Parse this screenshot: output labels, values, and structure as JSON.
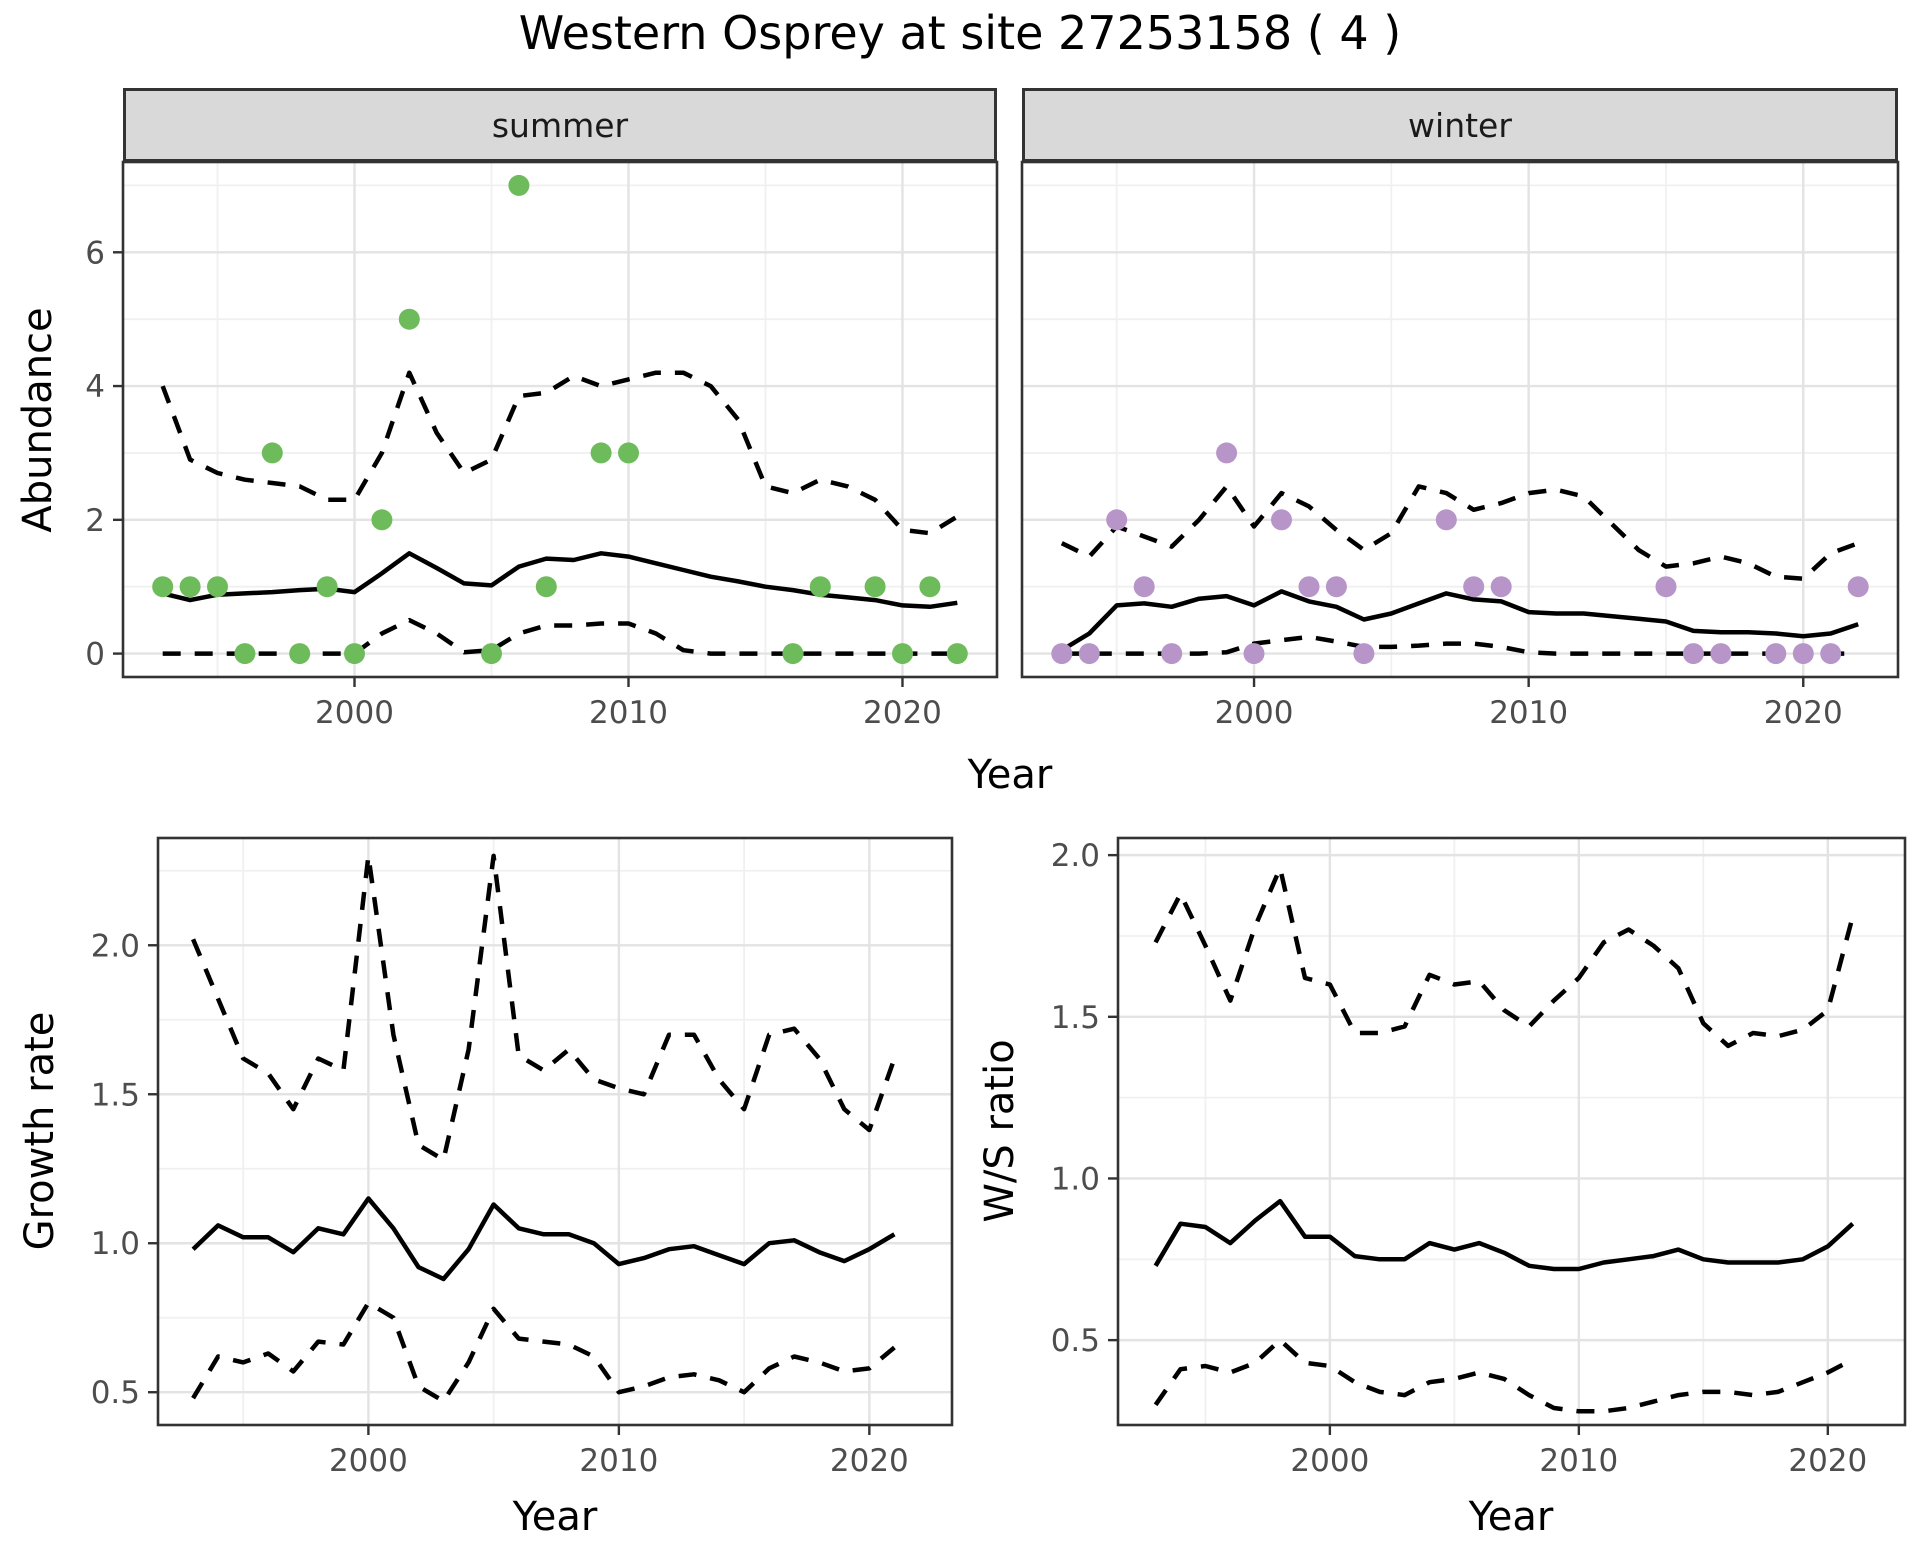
{
  "title": "Western Osprey at site 27253158 ( 4 )",
  "colors": {
    "summer_point": "#6ebb5c",
    "winter_point": "#b795c8",
    "line": "#000000",
    "strip_bg": "#d9d9d9",
    "grid_major": "#e3e3e3",
    "grid_minor": "#f0f0f0",
    "panel_border": "#333333",
    "tick_text": "#4d4d4d"
  },
  "chart_data": [
    {
      "id": "abundance",
      "type": "line+scatter",
      "ylabel": "Abundance",
      "xlabel": "Year",
      "x_major": [
        2000,
        2010,
        2020
      ],
      "x_minor": [
        1995,
        2005,
        2015
      ],
      "x_tick_labels": [
        "2000",
        "2010",
        "2020"
      ],
      "y_major": [
        0,
        2,
        4,
        6
      ],
      "y_minor": [
        1,
        3,
        5,
        7
      ],
      "y_tick_labels": [
        "0",
        "2",
        "4",
        "6"
      ],
      "xlim": [
        1991.55,
        2023.45
      ],
      "ylim": [
        -0.35,
        7.35
      ],
      "facets": [
        {
          "label": "summer",
          "point_color": "#6ebb5c",
          "points": {
            "years": [
              1993,
              1994,
              1995,
              1996,
              1997,
              1998,
              1999,
              2000,
              2001,
              2002,
              2005,
              2006,
              2007,
              2009,
              2010,
              2016,
              2017,
              2019,
              2020,
              2021,
              2022
            ],
            "values": [
              1,
              1,
              1,
              0,
              3,
              0,
              1,
              0,
              2,
              5,
              0,
              7,
              1,
              3,
              3,
              0,
              1,
              1,
              0,
              1,
              0
            ]
          },
          "year_start": 1993,
          "median": [
            0.9,
            0.8,
            0.88,
            0.9,
            0.92,
            0.95,
            0.97,
            0.92,
            1.2,
            1.5,
            1.28,
            1.05,
            1.02,
            1.3,
            1.42,
            1.4,
            1.5,
            1.45,
            1.35,
            1.25,
            1.15,
            1.08,
            1.0,
            0.95,
            0.88,
            0.84,
            0.8,
            0.72,
            0.7,
            0.76
          ],
          "upper": [
            4.0,
            2.9,
            2.7,
            2.6,
            2.55,
            2.5,
            2.3,
            2.3,
            3.0,
            4.2,
            3.3,
            2.7,
            2.9,
            3.85,
            3.9,
            4.15,
            4.0,
            4.1,
            4.2,
            4.2,
            4.0,
            3.5,
            2.5,
            2.4,
            2.6,
            2.5,
            2.3,
            1.85,
            1.8,
            2.05
          ],
          "lower": [
            0,
            0,
            0,
            0,
            0,
            0,
            0,
            0,
            0.3,
            0.5,
            0.3,
            0.02,
            0.05,
            0.3,
            0.42,
            0.42,
            0.45,
            0.45,
            0.3,
            0.05,
            0,
            0,
            0,
            0,
            0,
            0,
            0,
            0,
            0,
            0
          ]
        },
        {
          "label": "winter",
          "point_color": "#b795c8",
          "points": {
            "years": [
              1993,
              1994,
              1995,
              1996,
              1997,
              1999,
              2000,
              2001,
              2002,
              2003,
              2004,
              2007,
              2008,
              2009,
              2015,
              2016,
              2017,
              2019,
              2020,
              2021,
              2022
            ],
            "values": [
              0,
              0,
              2,
              1,
              0,
              3,
              0,
              2,
              1,
              1,
              0,
              2,
              1,
              1,
              1,
              0,
              0,
              0,
              0,
              0,
              1
            ]
          },
          "year_start": 1993,
          "median": [
            0.05,
            0.3,
            0.72,
            0.75,
            0.7,
            0.82,
            0.86,
            0.72,
            0.93,
            0.78,
            0.7,
            0.51,
            0.6,
            0.75,
            0.9,
            0.81,
            0.78,
            0.62,
            0.6,
            0.6,
            0.56,
            0.52,
            0.48,
            0.34,
            0.32,
            0.32,
            0.3,
            0.26,
            0.3,
            0.44
          ],
          "upper": [
            1.65,
            1.45,
            1.9,
            1.75,
            1.6,
            2.0,
            2.5,
            1.9,
            2.4,
            2.2,
            1.85,
            1.55,
            1.8,
            2.5,
            2.4,
            2.15,
            2.25,
            2.4,
            2.45,
            2.35,
            1.95,
            1.55,
            1.3,
            1.35,
            1.45,
            1.35,
            1.15,
            1.12,
            1.5,
            1.65
          ],
          "lower": [
            0,
            0,
            0,
            0,
            0,
            0,
            0.02,
            0.15,
            0.2,
            0.25,
            0.18,
            0.1,
            0.1,
            0.12,
            0.15,
            0.15,
            0.1,
            0.02,
            0,
            0,
            0,
            0,
            0,
            0,
            0,
            0,
            0,
            0,
            0,
            0
          ]
        }
      ]
    },
    {
      "id": "growth",
      "type": "line",
      "ylabel": "Growth rate",
      "xlabel": "Year",
      "x_major": [
        2000,
        2010,
        2020
      ],
      "x_minor": [
        1995,
        2005,
        2015
      ],
      "x_tick_labels": [
        "2000",
        "2010",
        "2020"
      ],
      "y_major": [
        0.5,
        1.0,
        1.5,
        2.0
      ],
      "y_minor": [
        0.75,
        1.25,
        1.75,
        2.25
      ],
      "y_tick_labels": [
        "0.5",
        "1.0",
        "1.5",
        "2.0"
      ],
      "xlim": [
        1991.6,
        2023.3
      ],
      "ylim": [
        0.39,
        2.36
      ],
      "year_start": 1993,
      "median": [
        0.98,
        1.06,
        1.02,
        1.02,
        0.97,
        1.05,
        1.03,
        1.15,
        1.05,
        0.92,
        0.88,
        0.98,
        1.13,
        1.05,
        1.03,
        1.03,
        1.0,
        0.93,
        0.95,
        0.98,
        0.99,
        0.96,
        0.93,
        1.0,
        1.01,
        0.97,
        0.94,
        0.98,
        1.03
      ],
      "upper": [
        2.02,
        1.82,
        1.62,
        1.57,
        1.45,
        1.62,
        1.58,
        2.3,
        1.7,
        1.33,
        1.28,
        1.65,
        2.3,
        1.63,
        1.58,
        1.65,
        1.55,
        1.52,
        1.5,
        1.7,
        1.7,
        1.55,
        1.45,
        1.7,
        1.72,
        1.62,
        1.45,
        1.38,
        1.62
      ],
      "lower": [
        0.48,
        0.62,
        0.6,
        0.63,
        0.57,
        0.67,
        0.66,
        0.8,
        0.75,
        0.52,
        0.47,
        0.6,
        0.78,
        0.68,
        0.67,
        0.66,
        0.62,
        0.5,
        0.52,
        0.55,
        0.56,
        0.54,
        0.5,
        0.58,
        0.62,
        0.6,
        0.57,
        0.58,
        0.65
      ]
    },
    {
      "id": "ws",
      "type": "line",
      "ylabel": "W/S ratio",
      "xlabel": "Year",
      "x_major": [
        2000,
        2010,
        2020
      ],
      "x_minor": [
        1995,
        2005,
        2015
      ],
      "x_tick_labels": [
        "2000",
        "2010",
        "2020"
      ],
      "y_major": [
        0.5,
        1.0,
        1.5,
        2.0
      ],
      "y_minor": [
        0.75,
        1.25,
        1.75
      ],
      "y_tick_labels": [
        "0.5",
        "1.0",
        "1.5",
        "2.0"
      ],
      "xlim": [
        1991.49,
        2023.1
      ],
      "ylim": [
        0.2375,
        2.053
      ],
      "year_start": 1993,
      "median": [
        0.73,
        0.86,
        0.85,
        0.8,
        0.87,
        0.93,
        0.82,
        0.82,
        0.76,
        0.75,
        0.75,
        0.8,
        0.78,
        0.8,
        0.77,
        0.73,
        0.72,
        0.72,
        0.74,
        0.75,
        0.76,
        0.78,
        0.75,
        0.74,
        0.74,
        0.74,
        0.75,
        0.79,
        0.86
      ],
      "upper": [
        1.73,
        1.88,
        1.72,
        1.55,
        1.78,
        1.96,
        1.62,
        1.6,
        1.45,
        1.45,
        1.47,
        1.63,
        1.6,
        1.61,
        1.52,
        1.47,
        1.55,
        1.62,
        1.73,
        1.77,
        1.72,
        1.65,
        1.48,
        1.41,
        1.45,
        1.44,
        1.46,
        1.52,
        1.81
      ],
      "lower": [
        0.3,
        0.41,
        0.42,
        0.4,
        0.43,
        0.5,
        0.43,
        0.42,
        0.37,
        0.34,
        0.33,
        0.37,
        0.38,
        0.4,
        0.38,
        0.33,
        0.29,
        0.28,
        0.28,
        0.29,
        0.31,
        0.33,
        0.34,
        0.34,
        0.33,
        0.34,
        0.37,
        0.4,
        0.44
      ]
    }
  ]
}
